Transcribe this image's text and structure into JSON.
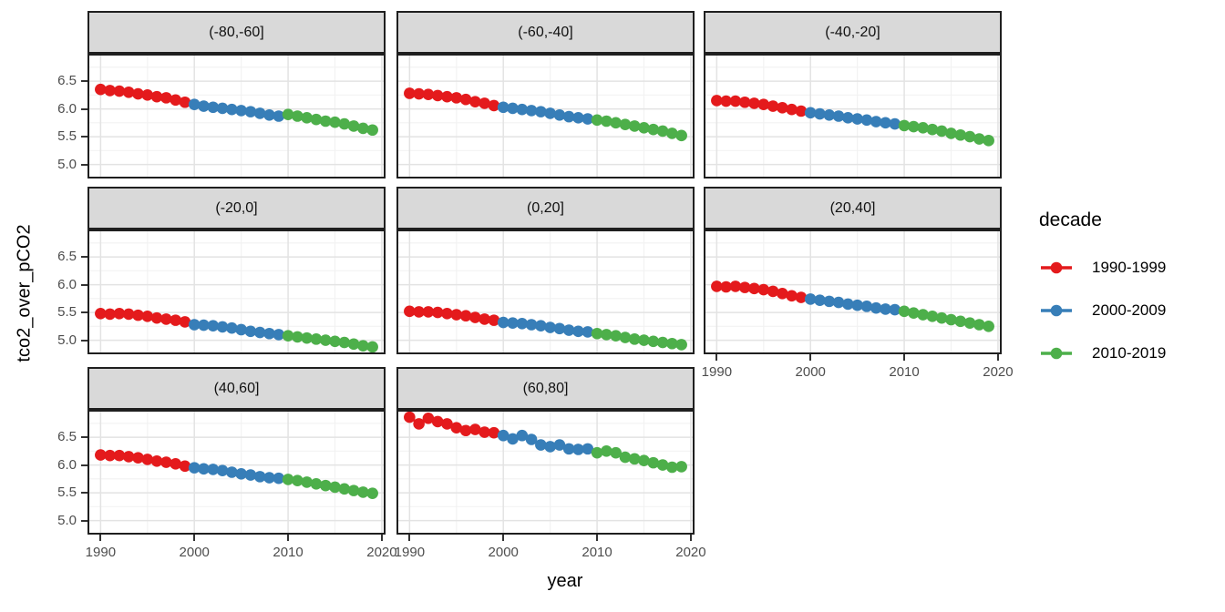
{
  "chart_data": {
    "type": "scatter",
    "title": "",
    "xlabel": "year",
    "ylabel": "tco2_over_pCO2",
    "legend_title": "decade",
    "legend_position": "right",
    "grid": true,
    "xlim": [
      1988.8,
      2020.2
    ],
    "ylim": [
      4.78,
      6.96
    ],
    "x_ticks": [
      1990,
      2000,
      2010,
      2020
    ],
    "y_ticks": [
      6.5,
      6.0,
      5.5,
      5.0
    ],
    "x_minor_ticks": [
      1995,
      2005,
      2015
    ],
    "y_minor_ticks": [
      6.75,
      6.25,
      5.75,
      5.25
    ],
    "x": [
      1990,
      1991,
      1992,
      1993,
      1994,
      1995,
      1996,
      1997,
      1998,
      1999,
      2000,
      2001,
      2002,
      2003,
      2004,
      2005,
      2006,
      2007,
      2008,
      2009,
      2010,
      2011,
      2012,
      2013,
      2014,
      2015,
      2016,
      2017,
      2018,
      2019
    ],
    "series_groups": [
      {
        "name": "1990-1999",
        "color": "#E41A1C",
        "start_year": 1990,
        "end_year": 1999
      },
      {
        "name": "2000-2009",
        "color": "#377EB8",
        "start_year": 2000,
        "end_year": 2009
      },
      {
        "name": "2010-2019",
        "color": "#4DAF4A",
        "start_year": 2010,
        "end_year": 2019
      }
    ],
    "facets": [
      {
        "label": "(-80,-60]",
        "show_x_axis": false,
        "show_y_axis": true,
        "values": [
          6.35,
          6.33,
          6.32,
          6.3,
          6.27,
          6.25,
          6.22,
          6.2,
          6.16,
          6.12,
          6.08,
          6.05,
          6.03,
          6.01,
          5.99,
          5.97,
          5.95,
          5.92,
          5.89,
          5.87,
          5.9,
          5.87,
          5.84,
          5.81,
          5.78,
          5.76,
          5.73,
          5.69,
          5.65,
          5.62
        ]
      },
      {
        "label": "(-60,-40]",
        "show_x_axis": false,
        "show_y_axis": false,
        "values": [
          6.28,
          6.27,
          6.26,
          6.24,
          6.22,
          6.2,
          6.17,
          6.13,
          6.1,
          6.06,
          6.03,
          6.01,
          5.99,
          5.97,
          5.95,
          5.92,
          5.89,
          5.86,
          5.84,
          5.82,
          5.8,
          5.78,
          5.75,
          5.72,
          5.69,
          5.66,
          5.63,
          5.6,
          5.56,
          5.52
        ]
      },
      {
        "label": "(-40,-20]",
        "show_x_axis": false,
        "show_y_axis": false,
        "values": [
          6.15,
          6.14,
          6.14,
          6.12,
          6.1,
          6.08,
          6.05,
          6.02,
          5.99,
          5.96,
          5.93,
          5.91,
          5.89,
          5.87,
          5.84,
          5.82,
          5.8,
          5.77,
          5.75,
          5.73,
          5.7,
          5.68,
          5.66,
          5.63,
          5.6,
          5.56,
          5.53,
          5.5,
          5.46,
          5.43
        ]
      },
      {
        "label": "(-20,0]",
        "show_x_axis": false,
        "show_y_axis": true,
        "values": [
          5.48,
          5.47,
          5.48,
          5.47,
          5.45,
          5.43,
          5.4,
          5.38,
          5.36,
          5.33,
          5.28,
          5.27,
          5.26,
          5.24,
          5.22,
          5.19,
          5.16,
          5.14,
          5.12,
          5.1,
          5.08,
          5.06,
          5.04,
          5.02,
          5.0,
          4.98,
          4.96,
          4.93,
          4.9,
          4.88
        ]
      },
      {
        "label": "(0,20]",
        "show_x_axis": false,
        "show_y_axis": false,
        "values": [
          5.52,
          5.51,
          5.51,
          5.5,
          5.48,
          5.46,
          5.44,
          5.41,
          5.38,
          5.36,
          5.32,
          5.31,
          5.3,
          5.28,
          5.26,
          5.23,
          5.21,
          5.18,
          5.16,
          5.15,
          5.12,
          5.1,
          5.08,
          5.05,
          5.02,
          5.0,
          4.98,
          4.96,
          4.94,
          4.92
        ]
      },
      {
        "label": "(20,40]",
        "show_x_axis": true,
        "show_y_axis": false,
        "values": [
          5.97,
          5.96,
          5.97,
          5.95,
          5.93,
          5.91,
          5.88,
          5.84,
          5.8,
          5.77,
          5.74,
          5.72,
          5.7,
          5.68,
          5.65,
          5.63,
          5.61,
          5.58,
          5.56,
          5.55,
          5.52,
          5.49,
          5.46,
          5.43,
          5.4,
          5.37,
          5.34,
          5.31,
          5.28,
          5.25
        ]
      },
      {
        "label": "(40,60]",
        "show_x_axis": true,
        "show_y_axis": true,
        "values": [
          6.18,
          6.17,
          6.17,
          6.15,
          6.13,
          6.1,
          6.07,
          6.05,
          6.02,
          5.98,
          5.95,
          5.93,
          5.92,
          5.9,
          5.87,
          5.84,
          5.82,
          5.79,
          5.77,
          5.76,
          5.74,
          5.72,
          5.69,
          5.66,
          5.63,
          5.6,
          5.57,
          5.54,
          5.51,
          5.49
        ]
      },
      {
        "label": "(60,80]",
        "show_x_axis": true,
        "show_y_axis": false,
        "values": [
          6.86,
          6.74,
          6.84,
          6.78,
          6.74,
          6.67,
          6.62,
          6.64,
          6.59,
          6.58,
          6.53,
          6.47,
          6.53,
          6.46,
          6.36,
          6.33,
          6.36,
          6.29,
          6.28,
          6.29,
          6.22,
          6.25,
          6.22,
          6.14,
          6.11,
          6.08,
          6.04,
          6.0,
          5.96,
          5.97
        ]
      }
    ],
    "theme": {
      "strip_background": "#D9D9D9",
      "panel_border": "#1F1F1F",
      "grid_major": "#E3E3E3",
      "grid_minor": "#F2F2F2",
      "tick_label_color": "#4D4D4D"
    }
  }
}
